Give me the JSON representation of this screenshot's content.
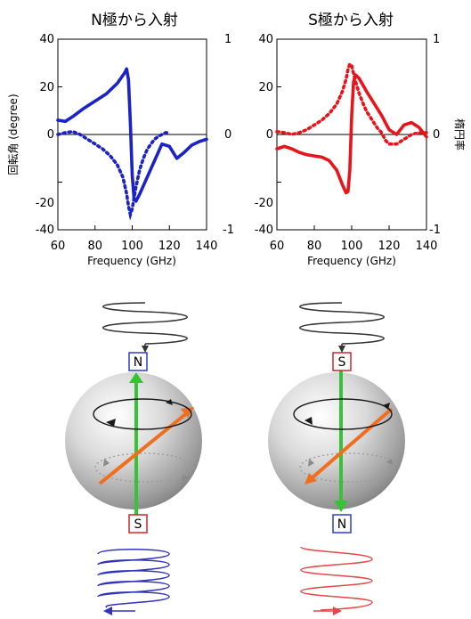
{
  "chart_data": [
    {
      "type": "line",
      "title": "N極から入射",
      "xlabel": "Frequency (GHz)",
      "ylabel": "回転角 (degree)",
      "y2label": "",
      "xlim": [
        60,
        140
      ],
      "ylim": [
        -40,
        40
      ],
      "y2lim": [
        -1,
        1
      ],
      "xticks": [
        "60",
        "80",
        "100",
        "120",
        "140"
      ],
      "yticks": [
        "-40",
        "-20",
        "0",
        "20",
        "40"
      ],
      "y2ticks": [
        "-1",
        "0",
        "1"
      ],
      "color": "#1a22c8",
      "series": [
        {
          "axis": "left",
          "style": "solid",
          "x": [
            60,
            64,
            68,
            74,
            80,
            86,
            92,
            96,
            97,
            98,
            99,
            100,
            101,
            102,
            104,
            108,
            112,
            116,
            120,
            124,
            128,
            132,
            136,
            140
          ],
          "y": [
            6,
            5.5,
            7.5,
            11,
            14,
            17,
            21.5,
            26,
            27.5,
            23,
            5,
            -17,
            -27,
            -28,
            -25,
            -18,
            -11,
            -4,
            -5,
            -10,
            -7.5,
            -4.5,
            -3,
            -2
          ]
        },
        {
          "axis": "right",
          "style": "dotted",
          "x": [
            60,
            64,
            68,
            72,
            76,
            80,
            84,
            88,
            92,
            95,
            97,
            98,
            99,
            100,
            102,
            104,
            106,
            108,
            110,
            112,
            114,
            116,
            118,
            120
          ],
          "y": [
            0,
            0.02,
            0.03,
            0,
            -0.05,
            -0.1,
            -0.15,
            -0.22,
            -0.32,
            -0.45,
            -0.62,
            -0.75,
            -0.84,
            -0.78,
            -0.55,
            -0.37,
            -0.25,
            -0.16,
            -0.1,
            -0.05,
            -0.02,
            0,
            0.02,
            0.02
          ]
        }
      ]
    },
    {
      "type": "line",
      "title": "S極から入射",
      "xlabel": "Frequency (GHz)",
      "ylabel": "",
      "y2label": "楕円率",
      "xlim": [
        60,
        140
      ],
      "ylim": [
        -40,
        40
      ],
      "y2lim": [
        -1,
        1
      ],
      "xticks": [
        "60",
        "80",
        "100",
        "120",
        "140"
      ],
      "yticks": [
        "-40",
        "-20",
        "0",
        "20",
        "40"
      ],
      "y2ticks": [
        "-1",
        "0",
        "1"
      ],
      "color": "#e8141a",
      "series": [
        {
          "axis": "left",
          "style": "solid",
          "x": [
            60,
            64,
            68,
            72,
            76,
            80,
            84,
            88,
            92,
            95,
            97,
            98,
            99,
            100,
            101,
            102,
            104,
            108,
            112,
            116,
            120,
            124,
            128,
            132,
            136,
            140
          ],
          "y": [
            -6,
            -5,
            -6,
            -7.5,
            -8.5,
            -9,
            -9.5,
            -11,
            -15,
            -21,
            -24.5,
            -24,
            -15,
            8,
            22,
            25,
            23.5,
            18,
            13,
            8,
            2,
            0,
            4,
            5,
            3,
            -1
          ]
        },
        {
          "axis": "right",
          "style": "dotted",
          "x": [
            60,
            64,
            68,
            72,
            76,
            80,
            84,
            88,
            92,
            95,
            97,
            98,
            99,
            100,
            101,
            102,
            104,
            106,
            108,
            110,
            112,
            114,
            116,
            118,
            120,
            124,
            128,
            132,
            136,
            140
          ],
          "y": [
            0.03,
            0.02,
            0,
            0.02,
            0.05,
            0.1,
            0.15,
            0.22,
            0.32,
            0.45,
            0.58,
            0.68,
            0.74,
            0.72,
            0.64,
            0.56,
            0.43,
            0.33,
            0.24,
            0.18,
            0.12,
            0.06,
            0.02,
            -0.06,
            -0.1,
            -0.1,
            -0.05,
            0,
            0.02,
            0.02
          ]
        }
      ]
    }
  ],
  "colors": {
    "spin_arrow": "#f06e1e",
    "axis_arrow": "#38c237",
    "n_badge_border": "#2a3fcc",
    "n_badge_text": "#1a2ab0",
    "s_badge_border": "#c8282a",
    "s_badge_text": "#b81e22",
    "incident_wave": "#333333",
    "left_outgoing_wave": "#3232bb",
    "right_outgoing_wave": "#e04a4a"
  },
  "diagrams": {
    "left": {
      "top_label": "N",
      "bottom_label": "S"
    },
    "right": {
      "top_label": "S",
      "bottom_label": "N"
    }
  }
}
